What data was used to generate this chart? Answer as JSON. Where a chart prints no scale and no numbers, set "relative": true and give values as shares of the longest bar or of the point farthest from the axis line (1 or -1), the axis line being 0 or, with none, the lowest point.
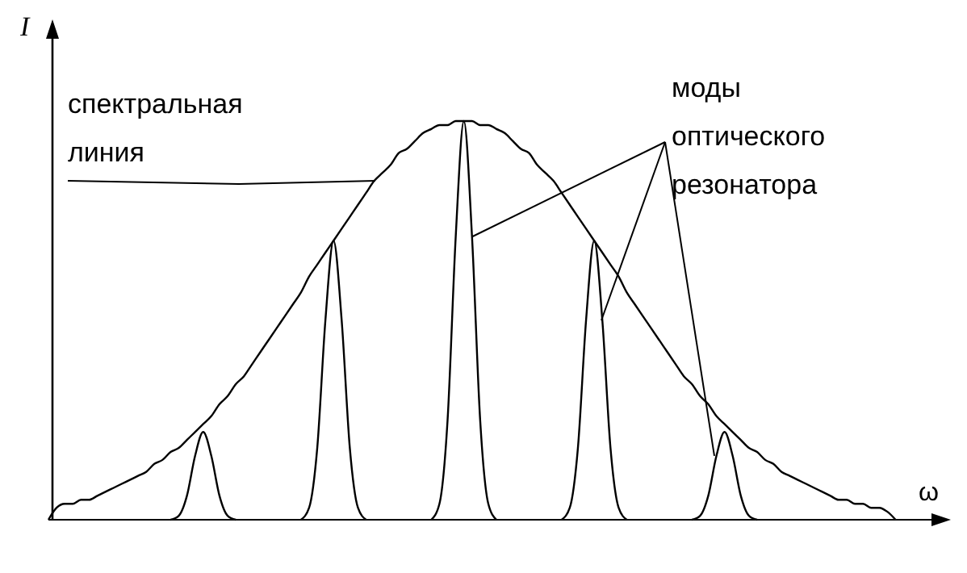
{
  "chart_data": {
    "type": "line",
    "relative": true,
    "xlabel": "ω",
    "ylabel": "I",
    "tick_labels": false,
    "marker": "none",
    "line_style": "solid",
    "annotations": [
      "спектральная\nлиния",
      "моды\nоптического\nрезонатора"
    ],
    "categories": [
      null,
      null,
      null,
      null,
      null,
      null,
      null,
      null,
      null,
      null,
      null,
      null,
      null,
      null,
      null,
      null,
      null,
      null,
      null,
      null,
      null,
      null,
      null,
      null,
      null,
      null,
      null,
      null,
      null,
      null,
      null,
      null,
      null,
      null,
      null,
      null,
      null,
      null,
      null,
      null,
      null,
      null,
      null,
      null,
      null,
      null,
      null,
      null,
      null,
      null,
      null,
      null,
      null,
      null,
      null,
      null,
      null,
      null,
      null,
      null,
      null,
      null,
      null,
      null,
      null,
      null,
      null,
      null,
      null,
      null,
      null,
      null,
      null,
      null,
      null,
      null,
      null,
      null,
      null,
      null,
      null,
      null,
      null,
      null,
      null,
      null,
      null,
      null,
      null,
      null,
      null,
      null,
      null,
      null,
      null,
      null,
      null,
      null,
      null,
      null,
      null,
      null,
      null,
      null,
      null,
      null,
      null,
      null,
      null,
      null
    ],
    "series": [
      {
        "color": "#000000",
        "values": [
          0,
          0.03,
          0.04,
          0.04,
          0.05,
          0.05,
          0.06,
          0.07,
          0.08,
          0.09,
          0.1,
          0.11,
          0.12,
          0.14,
          0.15,
          0.17,
          0.18,
          0.2,
          0.22,
          0.24,
          0.26,
          0.29,
          0.31,
          0.34,
          0.36,
          0.39,
          0.42,
          0.45,
          0.48,
          0.51,
          0.54,
          0.57,
          0.61,
          0.64,
          0.67,
          0.7,
          0.73,
          0.76,
          0.79,
          0.82,
          0.85,
          0.87,
          0.89,
          0.92,
          0.93,
          0.95,
          0.97,
          0.98,
          0.99,
          0.99,
          1.0,
          1.0,
          1.0,
          0.99,
          0.99,
          0.98,
          0.97,
          0.95,
          0.93,
          0.92,
          0.89,
          0.87,
          0.85,
          0.82,
          0.79,
          0.76,
          0.73,
          0.7,
          0.67,
          0.64,
          0.61,
          0.57,
          0.54,
          0.51,
          0.48,
          0.45,
          0.42,
          0.39,
          0.36,
          0.34,
          0.31,
          0.29,
          0.26,
          0.24,
          0.22,
          0.2,
          0.18,
          0.17,
          0.15,
          0.14,
          0.12,
          0.11,
          0.1,
          0.09,
          0.08,
          0.07,
          0.06,
          0.05,
          0.05,
          0.04,
          0.04,
          0.03,
          0.03,
          0.02,
          0,
          null,
          null,
          null,
          null,
          null
        ]
      },
      {
        "color": "#000000",
        "values": [
          null,
          null,
          null,
          null,
          null,
          null,
          null,
          null,
          null,
          null,
          null,
          null,
          null,
          null,
          null,
          0,
          0.01,
          0.06,
          0.16,
          0.22,
          0.16,
          0.06,
          0.01,
          0,
          null,
          null,
          null,
          null,
          null,
          null,
          null,
          0,
          0.03,
          0.18,
          0.5,
          0.7,
          0.5,
          0.18,
          0.03,
          0,
          null,
          null,
          null,
          null,
          null,
          null,
          null,
          0,
          0.04,
          0.25,
          0.71,
          1,
          0.71,
          0.25,
          0.04,
          0,
          null,
          null,
          null,
          null,
          null,
          null,
          null,
          0,
          0.03,
          0.18,
          0.5,
          0.7,
          0.5,
          0.18,
          0.03,
          0,
          null,
          null,
          null,
          null,
          null,
          null,
          null,
          0,
          0.01,
          0.06,
          0.16,
          0.22,
          0.16,
          0.06,
          0.01,
          0,
          null,
          null,
          null,
          null,
          null,
          null,
          null,
          null,
          null,
          null,
          null,
          null,
          null,
          null,
          null,
          null,
          null,
          null,
          null,
          null,
          null,
          null
        ]
      }
    ]
  }
}
